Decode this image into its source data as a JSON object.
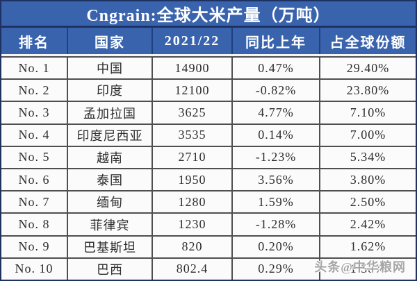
{
  "chart_data": {
    "type": "table",
    "title": "Cngrain:全球大米产量（万吨）",
    "columns": [
      "排名",
      "国家",
      "2021/22",
      "同比上年",
      "占全球份额"
    ],
    "rows": [
      [
        "No. 1",
        "中国",
        "14900",
        "0.47%",
        "29.40%"
      ],
      [
        "No. 2",
        "印度",
        "12100",
        "-0.82%",
        "23.80%"
      ],
      [
        "No. 3",
        "孟加拉国",
        "3625",
        "4.77%",
        "7.10%"
      ],
      [
        "No. 4",
        "印度尼西亚",
        "3535",
        "0.14%",
        "7.00%"
      ],
      [
        "No. 5",
        "越南",
        "2710",
        "-1.23%",
        "5.34%"
      ],
      [
        "No. 6",
        "泰国",
        "1950",
        "3.56%",
        "3.80%"
      ],
      [
        "No. 7",
        "缅甸",
        "1280",
        "1.59%",
        "2.50%"
      ],
      [
        "No. 8",
        "菲律宾",
        "1230",
        "-1.28%",
        "2.42%"
      ],
      [
        "No. 9",
        "巴基斯坦",
        "820",
        "0.20%",
        "1.62%"
      ],
      [
        "No. 10",
        "巴西",
        "802.4",
        "0.29%",
        "1.58%"
      ]
    ]
  },
  "watermark": {
    "text": "头条@中华粮网"
  },
  "colors": {
    "band_blue": "#3a63ae",
    "band_divider_navy": "#22407c",
    "outer_border_navy": "#1e3261",
    "body_border_gray": "#4f4f4f",
    "body_text": "#2d2d2d",
    "header_text": "#ffffff",
    "watermark_gray": "#a6a6a6",
    "cell_background": "#fbfbfb"
  }
}
